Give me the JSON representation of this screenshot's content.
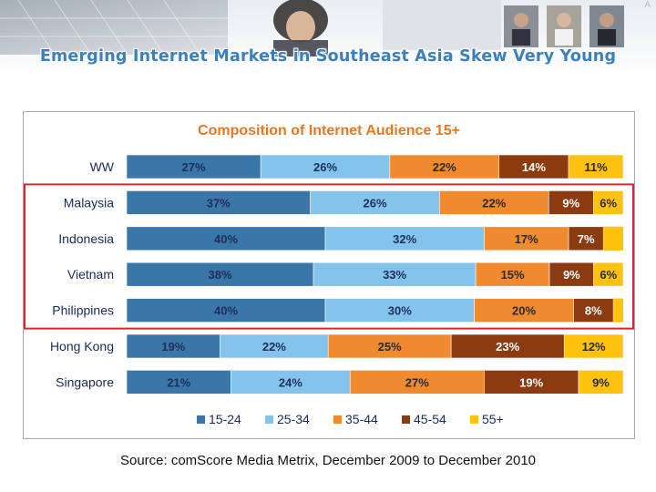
{
  "slide": {
    "title": "Emerging Internet Markets in Southeast Asia Skew Very Young",
    "source": "Source: comScore Media Metrix, December 2009 to December 2010",
    "corner_mark": "A"
  },
  "colors": {
    "title": "#3c7fc0",
    "chart_title": "#e87722",
    "highlight_box": "#d9252b"
  },
  "chart_data": {
    "type": "bar",
    "orientation": "horizontal",
    "stacked": true,
    "title": "Composition of Internet Audience 15+",
    "categories": [
      "WW",
      "Malaysia",
      "Indonesia",
      "Vietnam",
      "Philippines",
      "Hong Kong",
      "Singapore"
    ],
    "series": [
      {
        "name": "15-24",
        "color": "#3a76a8",
        "values": [
          27,
          37,
          40,
          38,
          40,
          19,
          21
        ]
      },
      {
        "name": "25-34",
        "color": "#84c4ec",
        "values": [
          26,
          26,
          32,
          33,
          30,
          22,
          24
        ]
      },
      {
        "name": "35-44",
        "color": "#f08a2e",
        "values": [
          22,
          22,
          17,
          15,
          20,
          25,
          27
        ]
      },
      {
        "name": "45-54",
        "color": "#8c3a10",
        "values": [
          14,
          9,
          7,
          9,
          8,
          23,
          19
        ]
      },
      {
        "name": "55+",
        "color": "#ffc20e",
        "values": [
          11,
          6,
          null,
          6,
          null,
          12,
          9
        ]
      }
    ],
    "value_suffix": "%",
    "highlighted_categories": [
      "Malaysia",
      "Indonesia",
      "Vietnam",
      "Philippines"
    ],
    "legend": {
      "position": "bottom"
    },
    "xlim": [
      0,
      100
    ],
    "grid": false
  }
}
